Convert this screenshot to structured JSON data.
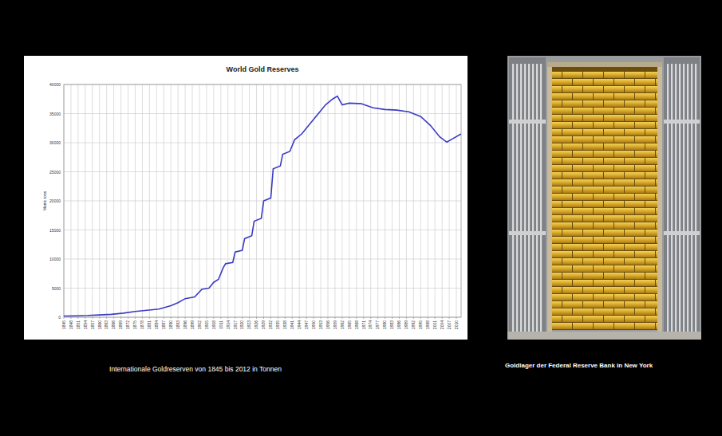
{
  "chart_data": {
    "type": "line",
    "title": "World Gold Reserves",
    "y_label": "Metric tons",
    "color": "#3b3bc4",
    "grid": true,
    "x": [
      1845,
      1850,
      1855,
      1860,
      1865,
      1870,
      1875,
      1880,
      1885,
      1890,
      1893,
      1896,
      1900,
      1903,
      1906,
      1908,
      1910,
      1912,
      1913,
      1916,
      1917,
      1920,
      1921,
      1924,
      1925,
      1928,
      1929,
      1932,
      1933,
      1936,
      1937,
      1940,
      1942,
      1945,
      1948,
      1952,
      1955,
      1958,
      1960,
      1962,
      1965,
      1970,
      1975,
      1980,
      1985,
      1990,
      1995,
      1999,
      2003,
      2006,
      2009,
      2012
    ],
    "values": [
      200,
      250,
      300,
      400,
      500,
      700,
      1000,
      1200,
      1400,
      2000,
      2500,
      3200,
      3500,
      4800,
      5000,
      6000,
      6500,
      8500,
      9200,
      9400,
      11200,
      11500,
      13500,
      14000,
      16500,
      17000,
      20000,
      20500,
      25500,
      26000,
      28000,
      28500,
      30500,
      31500,
      33000,
      35000,
      36500,
      37500,
      38000,
      36500,
      36800,
      36700,
      36000,
      35700,
      35600,
      35300,
      34500,
      33000,
      31000,
      30100,
      30800,
      31500
    ],
    "xlim": [
      1845,
      2012
    ],
    "xticks": [
      1845,
      1848,
      1851,
      1854,
      1857,
      1860,
      1863,
      1866,
      1869,
      1872,
      1875,
      1878,
      1881,
      1884,
      1887,
      1890,
      1893,
      1896,
      1899,
      1902,
      1905,
      1908,
      1911,
      1914,
      1917,
      1920,
      1923,
      1926,
      1929,
      1932,
      1935,
      1938,
      1941,
      1944,
      1947,
      1950,
      1953,
      1956,
      1959,
      1962,
      1965,
      1968,
      1971,
      1974,
      1977,
      1980,
      1983,
      1986,
      1989,
      1992,
      1995,
      1998,
      2001,
      2004,
      2007,
      2010
    ],
    "ylim": [
      0,
      40000
    ],
    "yticks": [
      0,
      5000,
      10000,
      15000,
      20000,
      25000,
      30000,
      35000,
      40000
    ]
  },
  "captions": {
    "chart": "Internationale Goldreserven von 1845 bis 2012 in Tonnen",
    "photo": "Goldlager der Federal Reserve Bank in New York"
  }
}
